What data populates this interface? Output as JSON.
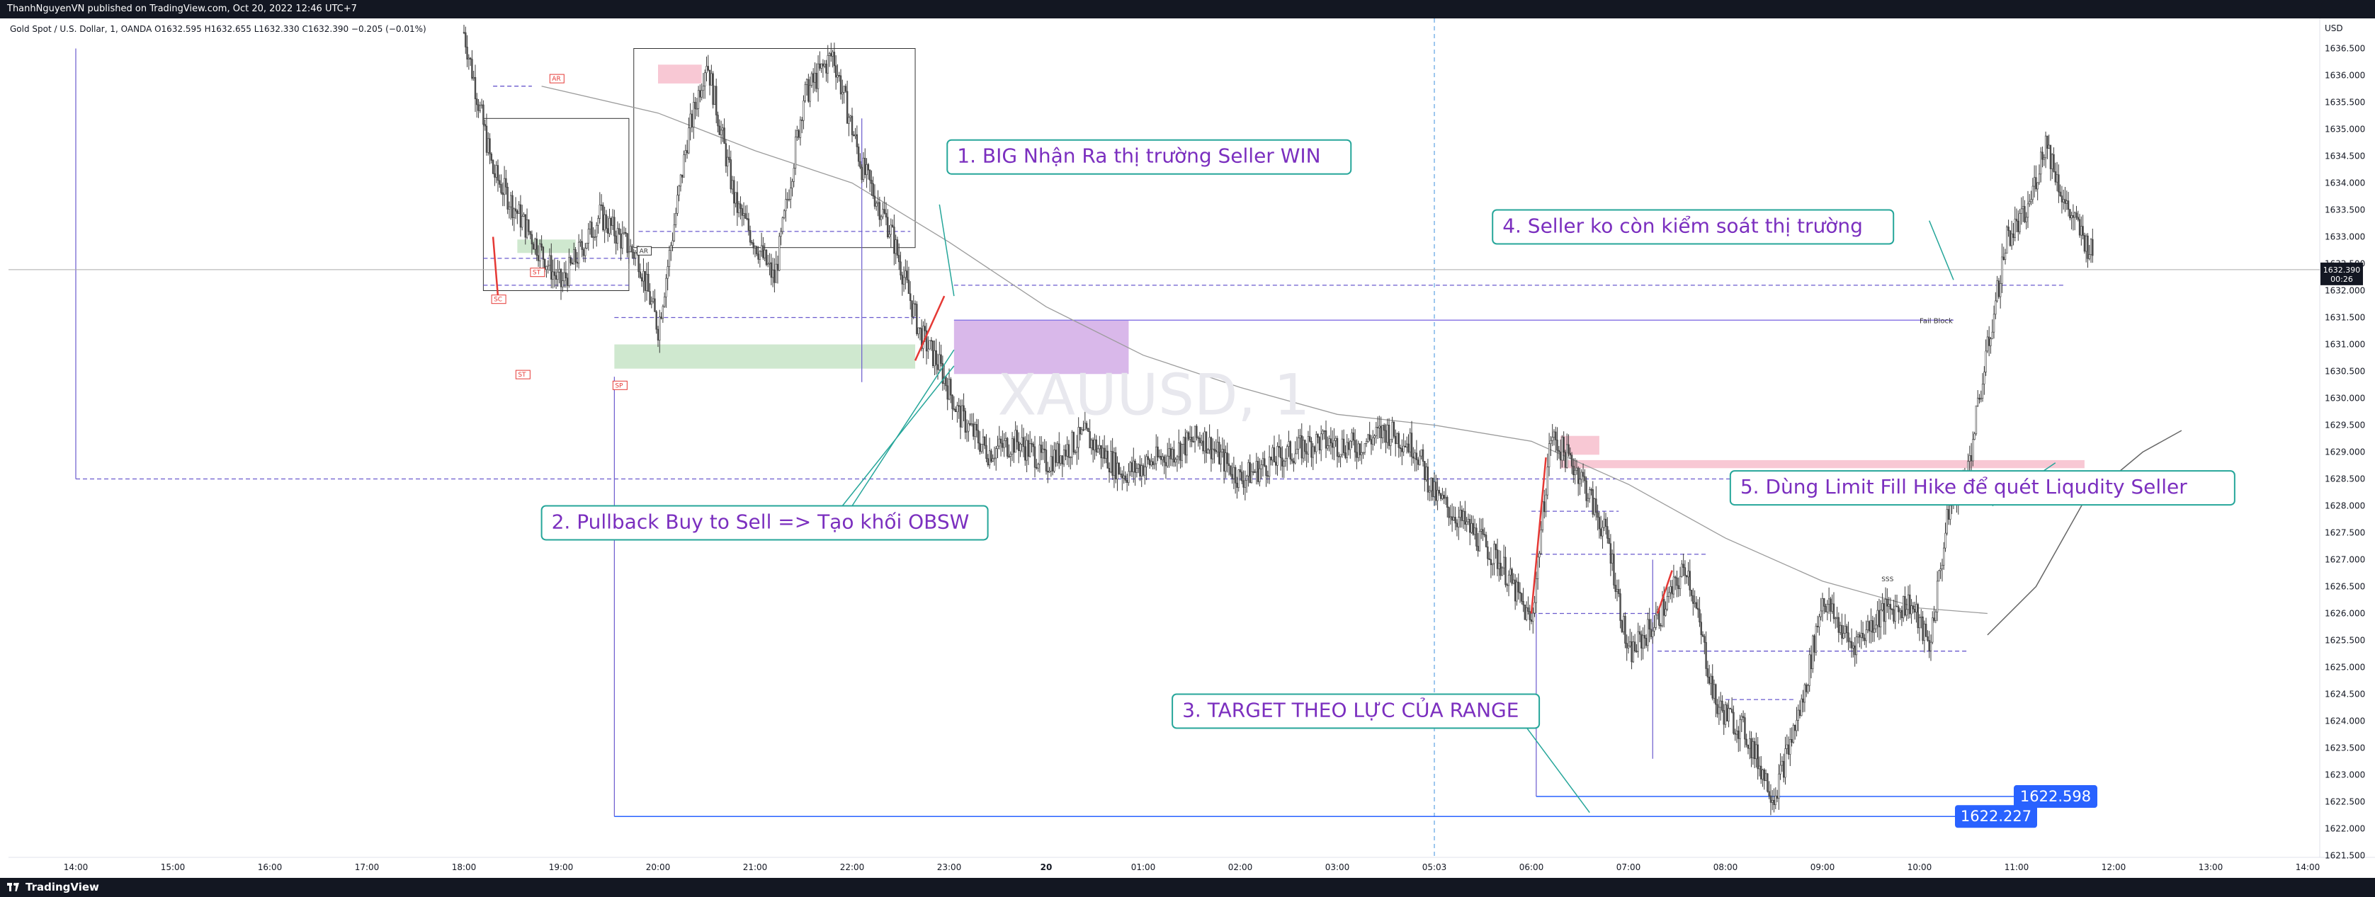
{
  "header": {
    "published_line": "ThanhNguyenVN published on TradingView.com, Oct 20, 2022 12:46 UTC+7"
  },
  "symbol_info": "Gold Spot / U.S. Dollar, 1, OANDA  O1632.595  H1632.655  L1632.330  C1632.390  −0.205 (−0.01%)",
  "footer": {
    "logo_text": "TradingView"
  },
  "watermark": "XAUUSD, 1",
  "colors": {
    "bullish_candle": "#ffffff",
    "bearish_candle": "#555555",
    "annotation_text": "#7b2fbf",
    "annotation_border": "#26a69a",
    "ob_purple": "#d9b8ea",
    "demand_green": "#cfe8cf",
    "supply_pink": "#f8c8d4",
    "price_tag_blue": "#2962ff",
    "current_price_bg": "#131722"
  },
  "chart_data": {
    "type": "candlestick",
    "symbol": "XAUUSD",
    "timeframe": "1",
    "ylim": [
      1621.3,
      1636.9
    ],
    "x_ticks": [
      "14:00",
      "15:00",
      "16:00",
      "17:00",
      "18:00",
      "19:00",
      "20:00",
      "21:00",
      "22:00",
      "23:00",
      "20",
      "01:00",
      "02:00",
      "03:00",
      "05:03",
      "06:00",
      "07:00",
      "08:00",
      "09:00",
      "10:00",
      "11:00",
      "12:00",
      "13:00",
      "14:00"
    ],
    "y_ticks": [
      "1636.500",
      "1636.000",
      "1635.500",
      "1635.000",
      "1634.500",
      "1634.000",
      "1633.500",
      "1633.000",
      "1632.500",
      "1632.000",
      "1631.500",
      "1631.000",
      "1630.500",
      "1630.000",
      "1629.500",
      "1629.000",
      "1628.500",
      "1628.000",
      "1627.500",
      "1627.000",
      "1626.500",
      "1626.000",
      "1625.500",
      "1625.000",
      "1624.500",
      "1624.000",
      "1623.500",
      "1623.000",
      "1622.500",
      "1622.000",
      "1621.500"
    ],
    "y_axis_unit": "USD",
    "price_path": [
      {
        "t": 4.0,
        "p": 1636.8
      },
      {
        "t": 4.3,
        "p": 1634.2
      },
      {
        "t": 4.7,
        "p": 1633.0
      },
      {
        "t": 5.0,
        "p": 1632.1
      },
      {
        "t": 5.4,
        "p": 1633.4
      },
      {
        "t": 5.8,
        "p": 1632.6
      },
      {
        "t": 6.0,
        "p": 1631.3
      },
      {
        "t": 6.3,
        "p": 1634.8
      },
      {
        "t": 6.5,
        "p": 1636.3
      },
      {
        "t": 6.8,
        "p": 1633.6
      },
      {
        "t": 7.2,
        "p": 1632.2
      },
      {
        "t": 7.5,
        "p": 1635.6
      },
      {
        "t": 7.8,
        "p": 1636.4
      },
      {
        "t": 8.1,
        "p": 1634.3
      },
      {
        "t": 8.4,
        "p": 1633.1
      },
      {
        "t": 8.7,
        "p": 1631.2
      },
      {
        "t": 8.9,
        "p": 1630.6
      },
      {
        "t": 9.1,
        "p": 1629.7
      },
      {
        "t": 9.4,
        "p": 1629.0
      },
      {
        "t": 9.7,
        "p": 1629.2
      },
      {
        "t": 10.0,
        "p": 1628.8
      },
      {
        "t": 10.4,
        "p": 1629.3
      },
      {
        "t": 10.8,
        "p": 1628.6
      },
      {
        "t": 11.2,
        "p": 1628.9
      },
      {
        "t": 11.6,
        "p": 1629.3
      },
      {
        "t": 12.0,
        "p": 1628.5
      },
      {
        "t": 12.4,
        "p": 1628.9
      },
      {
        "t": 12.8,
        "p": 1629.2
      },
      {
        "t": 13.2,
        "p": 1629.1
      },
      {
        "t": 13.5,
        "p": 1629.4
      },
      {
        "t": 13.8,
        "p": 1629.1
      },
      {
        "t": 14.0,
        "p": 1628.2
      },
      {
        "t": 14.4,
        "p": 1627.5
      },
      {
        "t": 14.7,
        "p": 1626.9
      },
      {
        "t": 15.0,
        "p": 1625.8
      },
      {
        "t": 15.2,
        "p": 1629.3
      },
      {
        "t": 15.5,
        "p": 1628.6
      },
      {
        "t": 15.8,
        "p": 1627.3
      },
      {
        "t": 16.0,
        "p": 1625.2
      },
      {
        "t": 16.3,
        "p": 1625.9
      },
      {
        "t": 16.6,
        "p": 1626.9
      },
      {
        "t": 16.9,
        "p": 1624.3
      },
      {
        "t": 17.2,
        "p": 1623.8
      },
      {
        "t": 17.5,
        "p": 1622.6
      },
      {
        "t": 17.8,
        "p": 1624.4
      },
      {
        "t": 18.0,
        "p": 1626.3
      },
      {
        "t": 18.3,
        "p": 1625.4
      },
      {
        "t": 18.6,
        "p": 1626.0
      },
      {
        "t": 18.9,
        "p": 1626.2
      },
      {
        "t": 19.1,
        "p": 1625.4
      },
      {
        "t": 19.3,
        "p": 1627.9
      },
      {
        "t": 19.5,
        "p": 1628.7
      },
      {
        "t": 19.7,
        "p": 1630.9
      },
      {
        "t": 19.9,
        "p": 1633.0
      },
      {
        "t": 20.1,
        "p": 1633.4
      },
      {
        "t": 20.3,
        "p": 1634.8
      },
      {
        "t": 20.5,
        "p": 1633.6
      },
      {
        "t": 20.8,
        "p": 1632.6
      }
    ],
    "reference_levels": [
      {
        "price": 1632.39,
        "label": "1632.390"
      },
      {
        "price": 1622.598,
        "label": "1622.598"
      },
      {
        "price": 1622.227,
        "label": "1622.227"
      }
    ],
    "current_price_label": "1632.390",
    "current_countdown": "00:26",
    "annotations": [
      {
        "id": 1,
        "text": "1. BIG Nhận Ra thị trường Seller WIN"
      },
      {
        "id": 2,
        "text": "2. Pullback Buy to Sell => Tạo khối OBSW"
      },
      {
        "id": 3,
        "text": "3. TARGET THEO LỰC CỦA RANGE"
      },
      {
        "id": 4,
        "text": "4. Seller ko còn kiểm soát thị trường"
      },
      {
        "id": 5,
        "text": "5. Dùng Limit Fill Hike để quét Liqudity Seller"
      }
    ],
    "small_labels": [
      "AR",
      "ST",
      "SC",
      "ST",
      "SP",
      "AR",
      "SSS",
      "Fail Block"
    ]
  }
}
